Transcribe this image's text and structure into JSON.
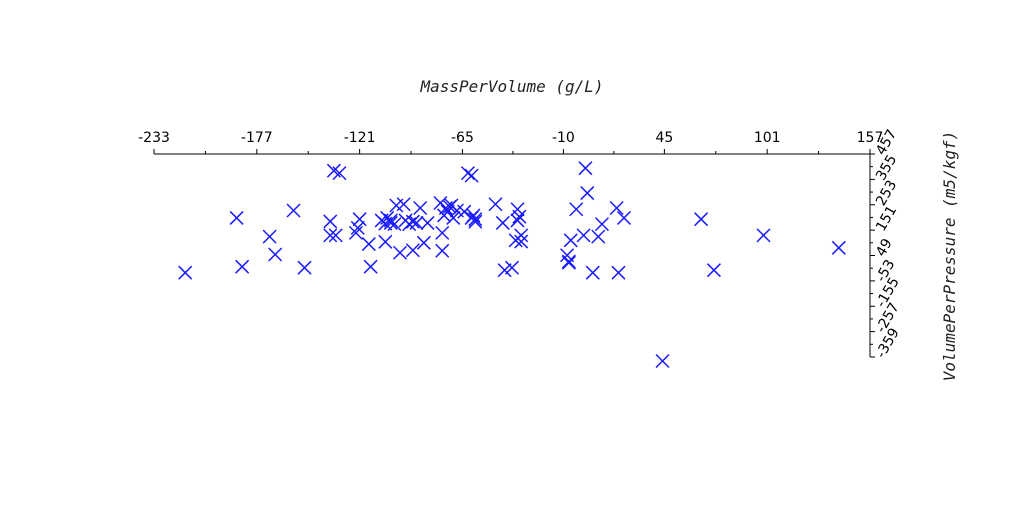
{
  "chart_data": {
    "type": "scatter",
    "xlabel": "MassPerVolume (g/L)",
    "ylabel": "VolumePerPressure (m5/kgf)",
    "xlim": [
      -233,
      157
    ],
    "ylim": [
      -359,
      457
    ],
    "x_ticks": [
      -233,
      -177,
      -121,
      -65,
      -10,
      45,
      101,
      157
    ],
    "y_ticks": [
      -359,
      -257,
      -155,
      -53,
      49,
      151,
      253,
      355,
      457
    ],
    "x_axis_position": "top",
    "y_axis_position": "right",
    "marker": "x",
    "color": "#1a1aff",
    "grid": false,
    "points": [
      [
        -216,
        -20
      ],
      [
        -188,
        200
      ],
      [
        -185,
        4
      ],
      [
        -170,
        125
      ],
      [
        -167,
        53
      ],
      [
        -157,
        230
      ],
      [
        -151,
        0
      ],
      [
        -137,
        186
      ],
      [
        -137,
        130
      ],
      [
        -134,
        130
      ],
      [
        -135,
        390
      ],
      [
        -132,
        380
      ],
      [
        -123,
        140
      ],
      [
        -122,
        160
      ],
      [
        -121,
        195
      ],
      [
        -116,
        95
      ],
      [
        -115,
        4
      ],
      [
        -109,
        190
      ],
      [
        -107,
        177
      ],
      [
        -107,
        104
      ],
      [
        -106,
        200
      ],
      [
        -104,
        180
      ],
      [
        -104,
        190
      ],
      [
        -102,
        175
      ],
      [
        -101,
        250
      ],
      [
        -99,
        60
      ],
      [
        -97,
        255
      ],
      [
        -96,
        190
      ],
      [
        -94,
        175
      ],
      [
        -92,
        70
      ],
      [
        -92,
        185
      ],
      [
        -90,
        180
      ],
      [
        -88,
        240
      ],
      [
        -86,
        100
      ],
      [
        -84,
        180
      ],
      [
        -77,
        260
      ],
      [
        -76,
        140
      ],
      [
        -76,
        68
      ],
      [
        -75,
        210
      ],
      [
        -74,
        240
      ],
      [
        -73,
        225
      ],
      [
        -72,
        245
      ],
      [
        -71,
        250
      ],
      [
        -70,
        200
      ],
      [
        -68,
        230
      ],
      [
        -64,
        225
      ],
      [
        -62,
        380
      ],
      [
        -60,
        370
      ],
      [
        -60,
        200
      ],
      [
        -59,
        210
      ],
      [
        -58,
        195
      ],
      [
        -58,
        185
      ],
      [
        -47,
        255
      ],
      [
        -43,
        180
      ],
      [
        -42,
        -10
      ],
      [
        -38,
        0
      ],
      [
        -36,
        110
      ],
      [
        -35,
        190
      ],
      [
        -35,
        235
      ],
      [
        -34,
        205
      ],
      [
        -33,
        130
      ],
      [
        -33,
        105
      ],
      [
        -8,
        50
      ],
      [
        -7,
        25
      ],
      [
        -7,
        20
      ],
      [
        -6,
        110
      ],
      [
        -3,
        235
      ],
      [
        1,
        130
      ],
      [
        2,
        400
      ],
      [
        3,
        300
      ],
      [
        6,
        -20
      ],
      [
        9,
        125
      ],
      [
        11,
        175
      ],
      [
        19,
        240
      ],
      [
        20,
        -20
      ],
      [
        23,
        200
      ],
      [
        44,
        -375
      ],
      [
        65,
        195
      ],
      [
        72,
        -10
      ],
      [
        99,
        130
      ],
      [
        140,
        80
      ]
    ]
  }
}
